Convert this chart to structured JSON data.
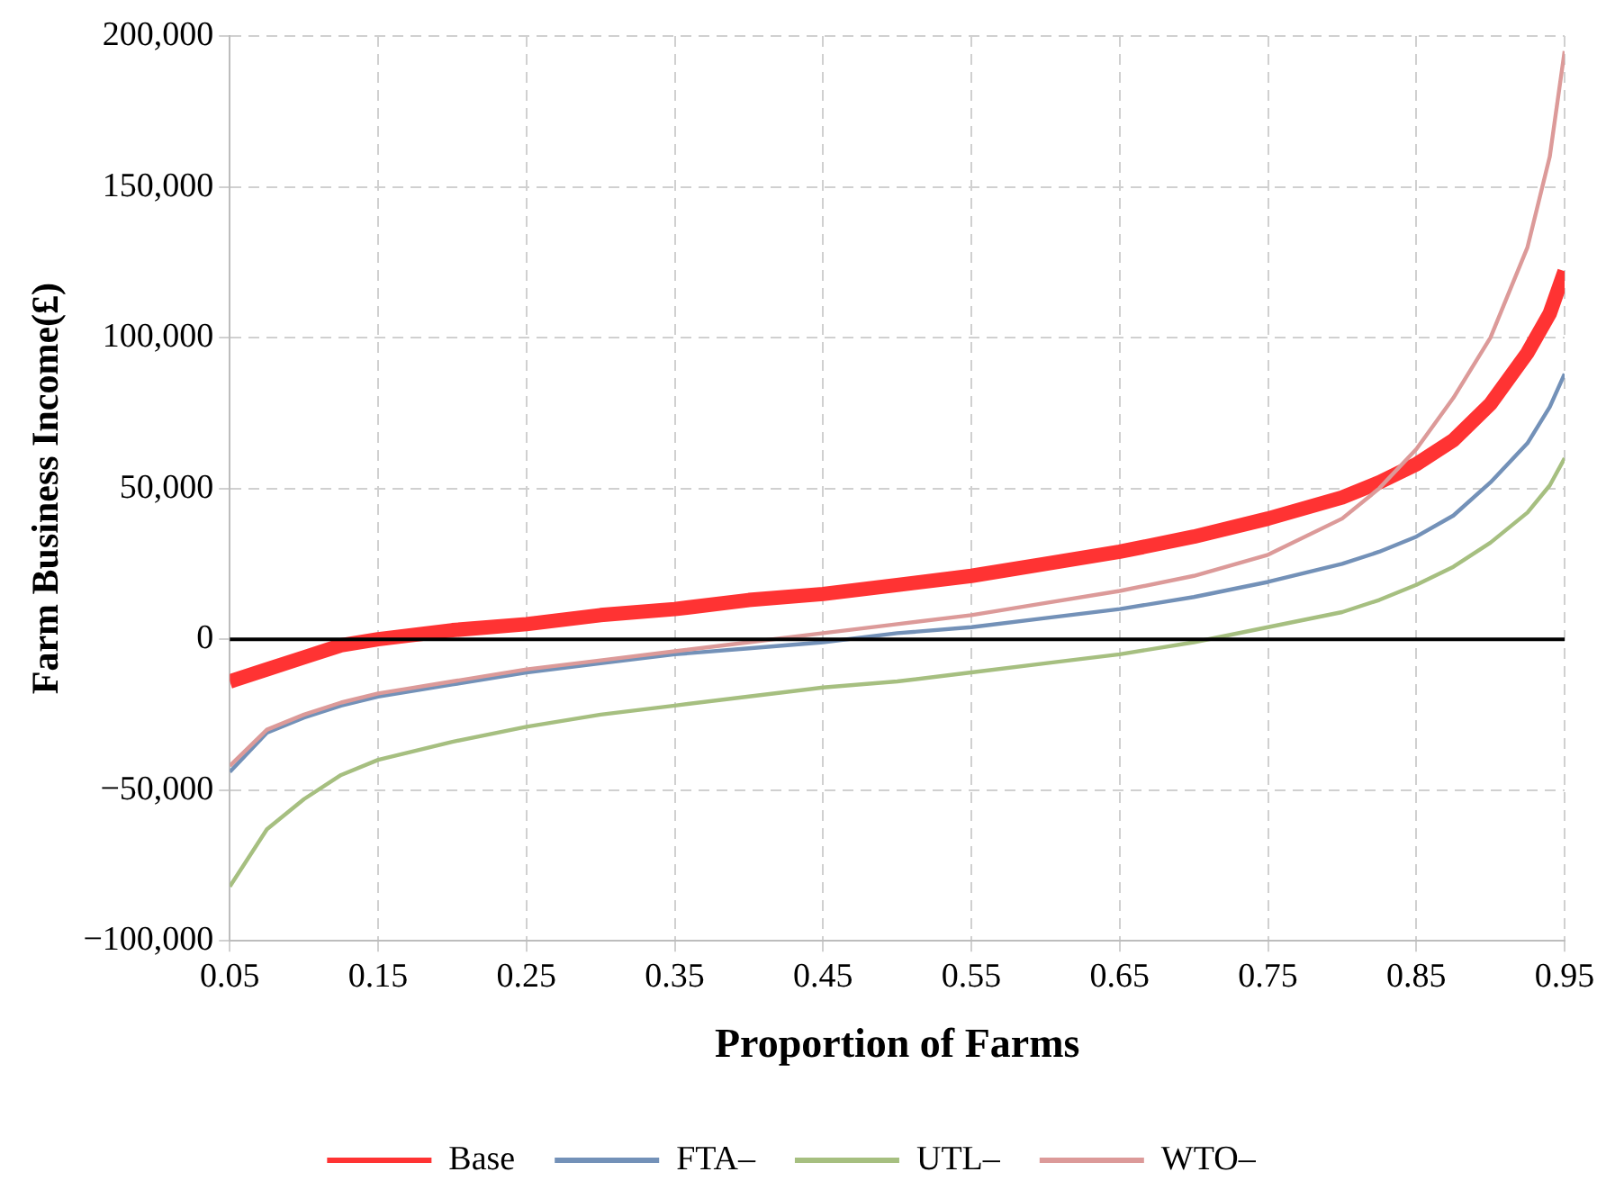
{
  "chart_data": {
    "type": "line",
    "xlabel": "Proportion of Farms",
    "ylabel": "Farm Business Income(£)",
    "x": [
      0.05,
      0.075,
      0.1,
      0.125,
      0.15,
      0.2,
      0.25,
      0.3,
      0.35,
      0.4,
      0.45,
      0.5,
      0.55,
      0.6,
      0.65,
      0.7,
      0.75,
      0.8,
      0.825,
      0.85,
      0.875,
      0.9,
      0.925,
      0.94,
      0.95
    ],
    "series": [
      {
        "name": "Base",
        "color": "#ff3333",
        "values": [
          -14000,
          -10000,
          -6000,
          -2000,
          0,
          3000,
          5000,
          8000,
          10000,
          13000,
          15000,
          18000,
          21000,
          25000,
          29000,
          34000,
          40000,
          47000,
          52000,
          58000,
          66000,
          78000,
          95000,
          108000,
          122000
        ]
      },
      {
        "name": "FTA–",
        "color": "#7391b8",
        "values": [
          -44000,
          -31000,
          -26000,
          -22000,
          -19000,
          -15000,
          -11000,
          -8000,
          -5000,
          -3000,
          -1000,
          2000,
          4000,
          7000,
          10000,
          14000,
          19000,
          25000,
          29000,
          34000,
          41000,
          52000,
          65000,
          77000,
          88000
        ]
      },
      {
        "name": "UTL–",
        "color": "#a6bf80",
        "values": [
          -82000,
          -63000,
          -53000,
          -45000,
          -40000,
          -34000,
          -29000,
          -25000,
          -22000,
          -19000,
          -16000,
          -14000,
          -11000,
          -8000,
          -5000,
          -1000,
          4000,
          9000,
          13000,
          18000,
          24000,
          32000,
          42000,
          51000,
          60000
        ]
      },
      {
        "name": "WTO–",
        "color": "#dc9a99",
        "values": [
          -42000,
          -30000,
          -25000,
          -21000,
          -18000,
          -14000,
          -10000,
          -7000,
          -4000,
          -1000,
          2000,
          5000,
          8000,
          12000,
          16000,
          21000,
          28000,
          40000,
          50000,
          63000,
          80000,
          100000,
          130000,
          160000,
          195000
        ]
      }
    ],
    "xlim": [
      0.05,
      0.95
    ],
    "xticks": [
      {
        "value": 0.05,
        "label": "0.05"
      },
      {
        "value": 0.15,
        "label": "0.15"
      },
      {
        "value": 0.25,
        "label": "0.25"
      },
      {
        "value": 0.35,
        "label": "0.35"
      },
      {
        "value": 0.45,
        "label": "0.45"
      },
      {
        "value": 0.55,
        "label": "0.55"
      },
      {
        "value": 0.65,
        "label": "0.65"
      },
      {
        "value": 0.75,
        "label": "0.75"
      },
      {
        "value": 0.85,
        "label": "0.85"
      },
      {
        "value": 0.95,
        "label": "0.95"
      }
    ],
    "ylim": [
      -100000,
      200000
    ],
    "yticks": [
      {
        "value": -100000,
        "label": "−100,000"
      },
      {
        "value": -50000,
        "label": "−50,000"
      },
      0,
      {
        "value": 50000,
        "label": "50,000"
      },
      {
        "value": 100000,
        "label": "100,000"
      },
      {
        "value": 150000,
        "label": "150,000"
      },
      {
        "value": 200000,
        "label": "200,000"
      }
    ],
    "ref_lines": [
      {
        "axis": "y",
        "value": 0,
        "color": "#000000"
      }
    ],
    "grid": true,
    "legend": "bottom",
    "marker": "none",
    "line_style": "solid"
  }
}
